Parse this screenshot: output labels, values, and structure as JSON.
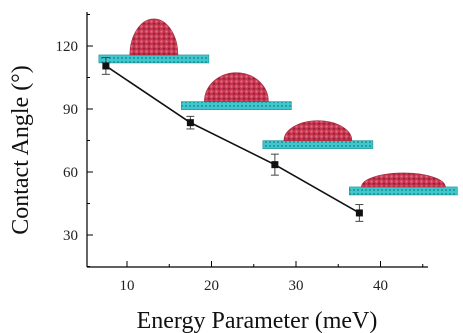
{
  "chart_data": {
    "type": "line",
    "title": "",
    "xlabel": "Energy Parameter (meV)",
    "ylabel": "Contact Angle (°)",
    "xlim": [
      5,
      45
    ],
    "ylim": [
      15,
      135
    ],
    "x_ticks": [
      10,
      20,
      30,
      40
    ],
    "y_ticks": [
      30,
      60,
      90,
      120
    ],
    "grid": false,
    "series": [
      {
        "x": [
          7.5,
          17.5,
          27.5,
          37.5
        ],
        "y": [
          110.5,
          83.5,
          63.5,
          40.5
        ],
        "error": [
          4,
          3,
          5,
          4
        ],
        "marker": "square",
        "color": "#111111"
      }
    ],
    "annotations": [
      "droplet-on-substrate image at 7.5 meV",
      "droplet-on-substrate image at 17.5 meV",
      "droplet-on-substrate image at 27.5 meV",
      "droplet-on-substrate image at 37.5 meV"
    ],
    "colors": {
      "droplet": "#c8344f",
      "droplet_dark": "#8a1f33",
      "substrate": "#3ec7cc",
      "substrate_dark": "#1f8f95"
    }
  }
}
